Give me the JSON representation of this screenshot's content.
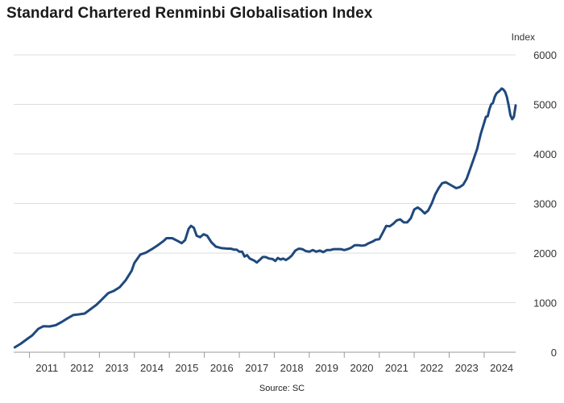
{
  "title": "Standard Chartered Renminbi Globalisation Index",
  "source": "Source: SC",
  "chart_data": {
    "type": "line",
    "title": "Standard Chartered Renminbi Globalisation Index",
    "ylabel": "Index",
    "xlabel": "",
    "ylim": [
      0,
      6000
    ],
    "xlim": [
      2010.55,
      2024.9
    ],
    "yticks": [
      0,
      1000,
      2000,
      3000,
      4000,
      5000,
      6000
    ],
    "x_tick_labels": [
      "2011",
      "2012",
      "2013",
      "2014",
      "2015",
      "2016",
      "2017",
      "2018",
      "2019",
      "2020",
      "2021",
      "2022",
      "2023",
      "2024"
    ],
    "grid": true,
    "line_color": "#1f497d",
    "series": [
      {
        "name": "",
        "points": [
          [
            2010.58,
            100
          ],
          [
            2010.75,
            170
          ],
          [
            2010.92,
            260
          ],
          [
            2011.08,
            340
          ],
          [
            2011.25,
            470
          ],
          [
            2011.4,
            525
          ],
          [
            2011.58,
            520
          ],
          [
            2011.75,
            545
          ],
          [
            2011.92,
            610
          ],
          [
            2012.08,
            680
          ],
          [
            2012.25,
            750
          ],
          [
            2012.42,
            765
          ],
          [
            2012.58,
            780
          ],
          [
            2012.75,
            870
          ],
          [
            2012.92,
            960
          ],
          [
            2013.08,
            1070
          ],
          [
            2013.25,
            1190
          ],
          [
            2013.42,
            1240
          ],
          [
            2013.58,
            1310
          ],
          [
            2013.75,
            1450
          ],
          [
            2013.92,
            1640
          ],
          [
            2014.0,
            1800
          ],
          [
            2014.17,
            1970
          ],
          [
            2014.33,
            2010
          ],
          [
            2014.5,
            2080
          ],
          [
            2014.67,
            2160
          ],
          [
            2014.83,
            2240
          ],
          [
            2014.92,
            2300
          ],
          [
            2015.08,
            2300
          ],
          [
            2015.25,
            2240
          ],
          [
            2015.35,
            2200
          ],
          [
            2015.45,
            2260
          ],
          [
            2015.55,
            2490
          ],
          [
            2015.62,
            2550
          ],
          [
            2015.7,
            2510
          ],
          [
            2015.78,
            2350
          ],
          [
            2015.88,
            2320
          ],
          [
            2015.98,
            2380
          ],
          [
            2016.08,
            2350
          ],
          [
            2016.2,
            2220
          ],
          [
            2016.33,
            2130
          ],
          [
            2016.5,
            2100
          ],
          [
            2016.67,
            2090
          ],
          [
            2016.75,
            2090
          ],
          [
            2016.85,
            2070
          ],
          [
            2016.92,
            2070
          ],
          [
            2017.0,
            2030
          ],
          [
            2017.08,
            2030
          ],
          [
            2017.15,
            1930
          ],
          [
            2017.22,
            1960
          ],
          [
            2017.3,
            1890
          ],
          [
            2017.42,
            1850
          ],
          [
            2017.5,
            1810
          ],
          [
            2017.58,
            1860
          ],
          [
            2017.67,
            1920
          ],
          [
            2017.75,
            1920
          ],
          [
            2017.85,
            1890
          ],
          [
            2017.95,
            1880
          ],
          [
            2018.03,
            1840
          ],
          [
            2018.1,
            1900
          ],
          [
            2018.18,
            1870
          ],
          [
            2018.25,
            1890
          ],
          [
            2018.33,
            1860
          ],
          [
            2018.42,
            1900
          ],
          [
            2018.5,
            1950
          ],
          [
            2018.6,
            2050
          ],
          [
            2018.7,
            2090
          ],
          [
            2018.8,
            2080
          ],
          [
            2018.9,
            2040
          ],
          [
            2019.0,
            2030
          ],
          [
            2019.1,
            2060
          ],
          [
            2019.2,
            2030
          ],
          [
            2019.3,
            2050
          ],
          [
            2019.4,
            2020
          ],
          [
            2019.5,
            2060
          ],
          [
            2019.6,
            2060
          ],
          [
            2019.7,
            2080
          ],
          [
            2019.8,
            2080
          ],
          [
            2019.9,
            2080
          ],
          [
            2020.0,
            2060
          ],
          [
            2020.1,
            2080
          ],
          [
            2020.2,
            2110
          ],
          [
            2020.3,
            2160
          ],
          [
            2020.4,
            2160
          ],
          [
            2020.5,
            2150
          ],
          [
            2020.6,
            2160
          ],
          [
            2020.7,
            2200
          ],
          [
            2020.8,
            2230
          ],
          [
            2020.9,
            2270
          ],
          [
            2021.0,
            2280
          ],
          [
            2021.1,
            2410
          ],
          [
            2021.2,
            2550
          ],
          [
            2021.3,
            2540
          ],
          [
            2021.4,
            2590
          ],
          [
            2021.5,
            2660
          ],
          [
            2021.6,
            2680
          ],
          [
            2021.7,
            2620
          ],
          [
            2021.8,
            2620
          ],
          [
            2021.9,
            2700
          ],
          [
            2022.0,
            2880
          ],
          [
            2022.1,
            2920
          ],
          [
            2022.2,
            2870
          ],
          [
            2022.3,
            2800
          ],
          [
            2022.4,
            2860
          ],
          [
            2022.5,
            3000
          ],
          [
            2022.6,
            3180
          ],
          [
            2022.7,
            3310
          ],
          [
            2022.8,
            3410
          ],
          [
            2022.9,
            3430
          ],
          [
            2023.0,
            3390
          ],
          [
            2023.1,
            3350
          ],
          [
            2023.2,
            3310
          ],
          [
            2023.3,
            3330
          ],
          [
            2023.4,
            3380
          ],
          [
            2023.5,
            3500
          ],
          [
            2023.6,
            3700
          ],
          [
            2023.7,
            3900
          ],
          [
            2023.8,
            4100
          ],
          [
            2023.9,
            4400
          ],
          [
            2024.0,
            4630
          ],
          [
            2024.05,
            4750
          ],
          [
            2024.1,
            4760
          ],
          [
            2024.15,
            4900
          ],
          [
            2024.2,
            5000
          ],
          [
            2024.25,
            5030
          ],
          [
            2024.3,
            5150
          ],
          [
            2024.35,
            5220
          ],
          [
            2024.4,
            5250
          ],
          [
            2024.45,
            5280
          ],
          [
            2024.5,
            5320
          ],
          [
            2024.55,
            5300
          ],
          [
            2024.6,
            5250
          ],
          [
            2024.65,
            5150
          ],
          [
            2024.7,
            4980
          ],
          [
            2024.75,
            4780
          ],
          [
            2024.8,
            4700
          ],
          [
            2024.85,
            4750
          ],
          [
            2024.9,
            4980
          ]
        ]
      }
    ]
  }
}
